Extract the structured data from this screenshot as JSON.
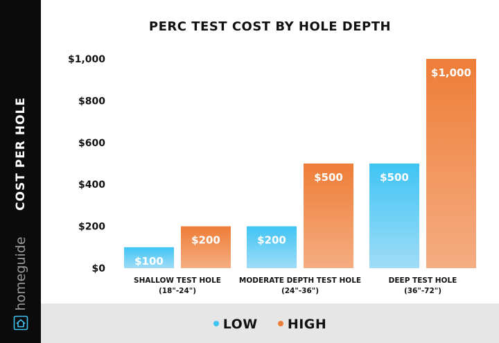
{
  "chart_data": {
    "type": "bar",
    "title": "PERC TEST COST BY HOLE DEPTH",
    "ylabel": "COST PER HOLE",
    "xlabel": "",
    "ylim": [
      0,
      1000
    ],
    "yticks": [
      0,
      200,
      400,
      600,
      800,
      1000
    ],
    "ytick_labels": [
      "$0",
      "$200",
      "$400",
      "$600",
      "$800",
      "$1,000"
    ],
    "categories": [
      [
        "SHALLOW TEST HOLE",
        "(18\"-24\")"
      ],
      [
        "MODERATE DEPTH TEST HOLE",
        "(24\"-36\")"
      ],
      [
        "DEEP TEST HOLE",
        "(36\"-72\")"
      ]
    ],
    "series": [
      {
        "name": "LOW",
        "values": [
          100,
          200,
          500
        ],
        "labels": [
          "$100",
          "$200",
          "$500"
        ],
        "color_top": "#3fc4f4",
        "color_bottom": "#9fdcf7"
      },
      {
        "name": "HIGH",
        "values": [
          200,
          500,
          1000
        ],
        "labels": [
          "$200",
          "$500",
          "$1,000"
        ],
        "color_top": "#ee7d37",
        "color_bottom": "#f5ad82"
      }
    ],
    "grid": false,
    "legend": "bottom"
  },
  "sidebar": {
    "brand": "homeguide",
    "brand_icon": "house-icon",
    "background": "#0b0b0b"
  },
  "legend_background": "#e6e6e6"
}
